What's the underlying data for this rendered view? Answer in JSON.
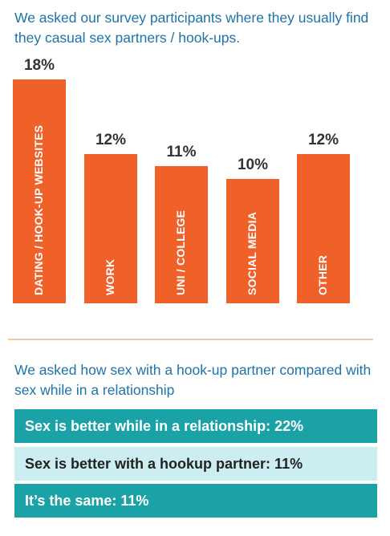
{
  "question1": "We asked our survey participants where they usually find they casual sex partners / hook-ups.",
  "question2": "We asked how sex with a hook-up partner compared with sex while in a relationship",
  "colors": {
    "bar": "#f0612a",
    "heading": "#1e73a8",
    "row_dark": "#1aa2a6",
    "row_light": "#cdeef0",
    "divider": "#f5c9a4"
  },
  "chart_data": {
    "type": "bar",
    "categories": [
      "DATING / HOOK-UP WEBSITES",
      "WORK",
      "UNI / COLLEGE",
      "SOCIAL MEDIA",
      "OTHER"
    ],
    "values": [
      18,
      12,
      11,
      10,
      12
    ],
    "value_labels": [
      "18%",
      "12%",
      "11%",
      "10%",
      "12%"
    ],
    "ylim": [
      0,
      18
    ],
    "grid": false
  },
  "comparison": [
    {
      "text": "Sex is better while in a relationship: 22%",
      "value": 22,
      "style": "dark"
    },
    {
      "text": "Sex is better with a hookup partner: 11%",
      "value": 11,
      "style": "light"
    },
    {
      "text": "It’s the same: 11%",
      "value": 11,
      "style": "dark"
    }
  ]
}
